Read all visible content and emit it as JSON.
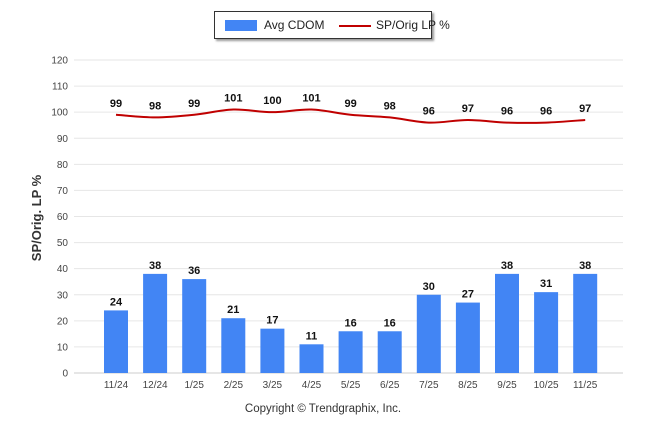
{
  "chart_data": {
    "type": "bar",
    "categories": [
      "11/24",
      "12/24",
      "1/25",
      "2/25",
      "3/25",
      "4/25",
      "5/25",
      "6/25",
      "7/25",
      "8/25",
      "9/25",
      "10/25",
      "11/25"
    ],
    "series": [
      {
        "name": "Avg CDOM",
        "type": "bar",
        "values": [
          24,
          38,
          36,
          21,
          17,
          11,
          16,
          16,
          30,
          27,
          38,
          31,
          38
        ],
        "color": "#4285f4"
      },
      {
        "name": "SP/Orig LP %",
        "type": "line",
        "values": [
          99,
          98,
          99,
          101,
          100,
          101,
          99,
          98,
          96,
          97,
          96,
          96,
          97
        ],
        "color": "#c00000"
      }
    ],
    "ylabel": "SP/Orig. LP %",
    "xlabel": "",
    "ylim": [
      0,
      120
    ],
    "yticks": [
      0,
      10,
      20,
      30,
      40,
      50,
      60,
      70,
      80,
      90,
      100,
      110,
      120
    ],
    "grid": true,
    "legend_position": "top-center"
  },
  "footer": {
    "copyright": "Copyright © Trendgraphix, Inc."
  }
}
